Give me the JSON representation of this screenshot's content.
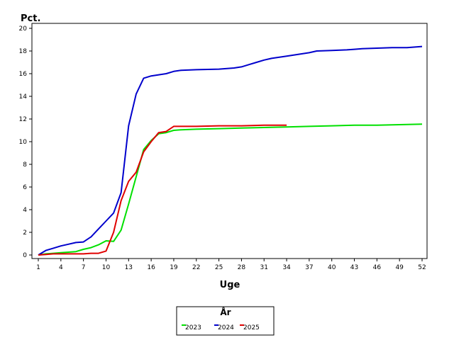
{
  "chart_data": {
    "type": "line",
    "ylabel": "Pct.",
    "xlabel": "Uge",
    "xlim": [
      1,
      52
    ],
    "ylim": [
      0,
      20
    ],
    "x_ticks": [
      1,
      4,
      7,
      10,
      13,
      16,
      19,
      22,
      25,
      28,
      31,
      34,
      37,
      40,
      43,
      46,
      49,
      52
    ],
    "y_ticks": [
      0,
      2,
      4,
      6,
      8,
      10,
      12,
      14,
      16,
      18,
      20
    ],
    "grid": false,
    "legend": {
      "title": "År",
      "placement": "bottom-center"
    },
    "series": [
      {
        "name": "2023",
        "color": "#00e000",
        "x": [
          1,
          2,
          3,
          4,
          5,
          6,
          7,
          8,
          9,
          10,
          11,
          12,
          13,
          14,
          15,
          16,
          17,
          18,
          19,
          20,
          22,
          25,
          28,
          31,
          34,
          37,
          40,
          43,
          46,
          49,
          52
        ],
        "y": [
          0.0,
          0.1,
          0.15,
          0.2,
          0.25,
          0.3,
          0.5,
          0.65,
          0.9,
          1.25,
          1.2,
          2.2,
          4.5,
          6.9,
          9.3,
          10.1,
          10.7,
          10.8,
          11.0,
          11.05,
          11.1,
          11.15,
          11.2,
          11.25,
          11.3,
          11.35,
          11.4,
          11.45,
          11.45,
          11.5,
          11.55
        ]
      },
      {
        "name": "2024",
        "color": "#0000cc",
        "x": [
          1,
          2,
          3,
          4,
          5,
          6,
          7,
          8,
          9,
          10,
          11,
          12,
          13,
          14,
          15,
          16,
          17,
          18,
          19,
          20,
          22,
          25,
          27,
          28,
          29,
          30,
          31,
          32,
          34,
          36,
          37,
          38,
          40,
          42,
          43,
          44,
          46,
          48,
          50,
          52
        ],
        "y": [
          0.0,
          0.4,
          0.6,
          0.8,
          0.95,
          1.1,
          1.15,
          1.6,
          2.3,
          3.0,
          3.7,
          5.5,
          11.4,
          14.2,
          15.6,
          15.8,
          15.9,
          16.0,
          16.2,
          16.3,
          16.35,
          16.4,
          16.5,
          16.6,
          16.8,
          17.0,
          17.2,
          17.35,
          17.55,
          17.75,
          17.85,
          18.0,
          18.05,
          18.1,
          18.15,
          18.2,
          18.25,
          18.3,
          18.3,
          18.4
        ]
      },
      {
        "name": "2025",
        "color": "#e00000",
        "x": [
          1,
          2,
          3,
          4,
          5,
          6,
          7,
          8,
          9,
          10,
          11,
          12,
          13,
          14,
          15,
          16,
          17,
          18,
          19,
          20,
          22,
          25,
          28,
          31,
          34
        ],
        "y": [
          0.0,
          0.05,
          0.1,
          0.1,
          0.1,
          0.1,
          0.1,
          0.15,
          0.15,
          0.35,
          2.0,
          4.8,
          6.5,
          7.3,
          9.1,
          10.0,
          10.8,
          10.9,
          11.35,
          11.35,
          11.35,
          11.4,
          11.4,
          11.45,
          11.45
        ]
      }
    ]
  }
}
